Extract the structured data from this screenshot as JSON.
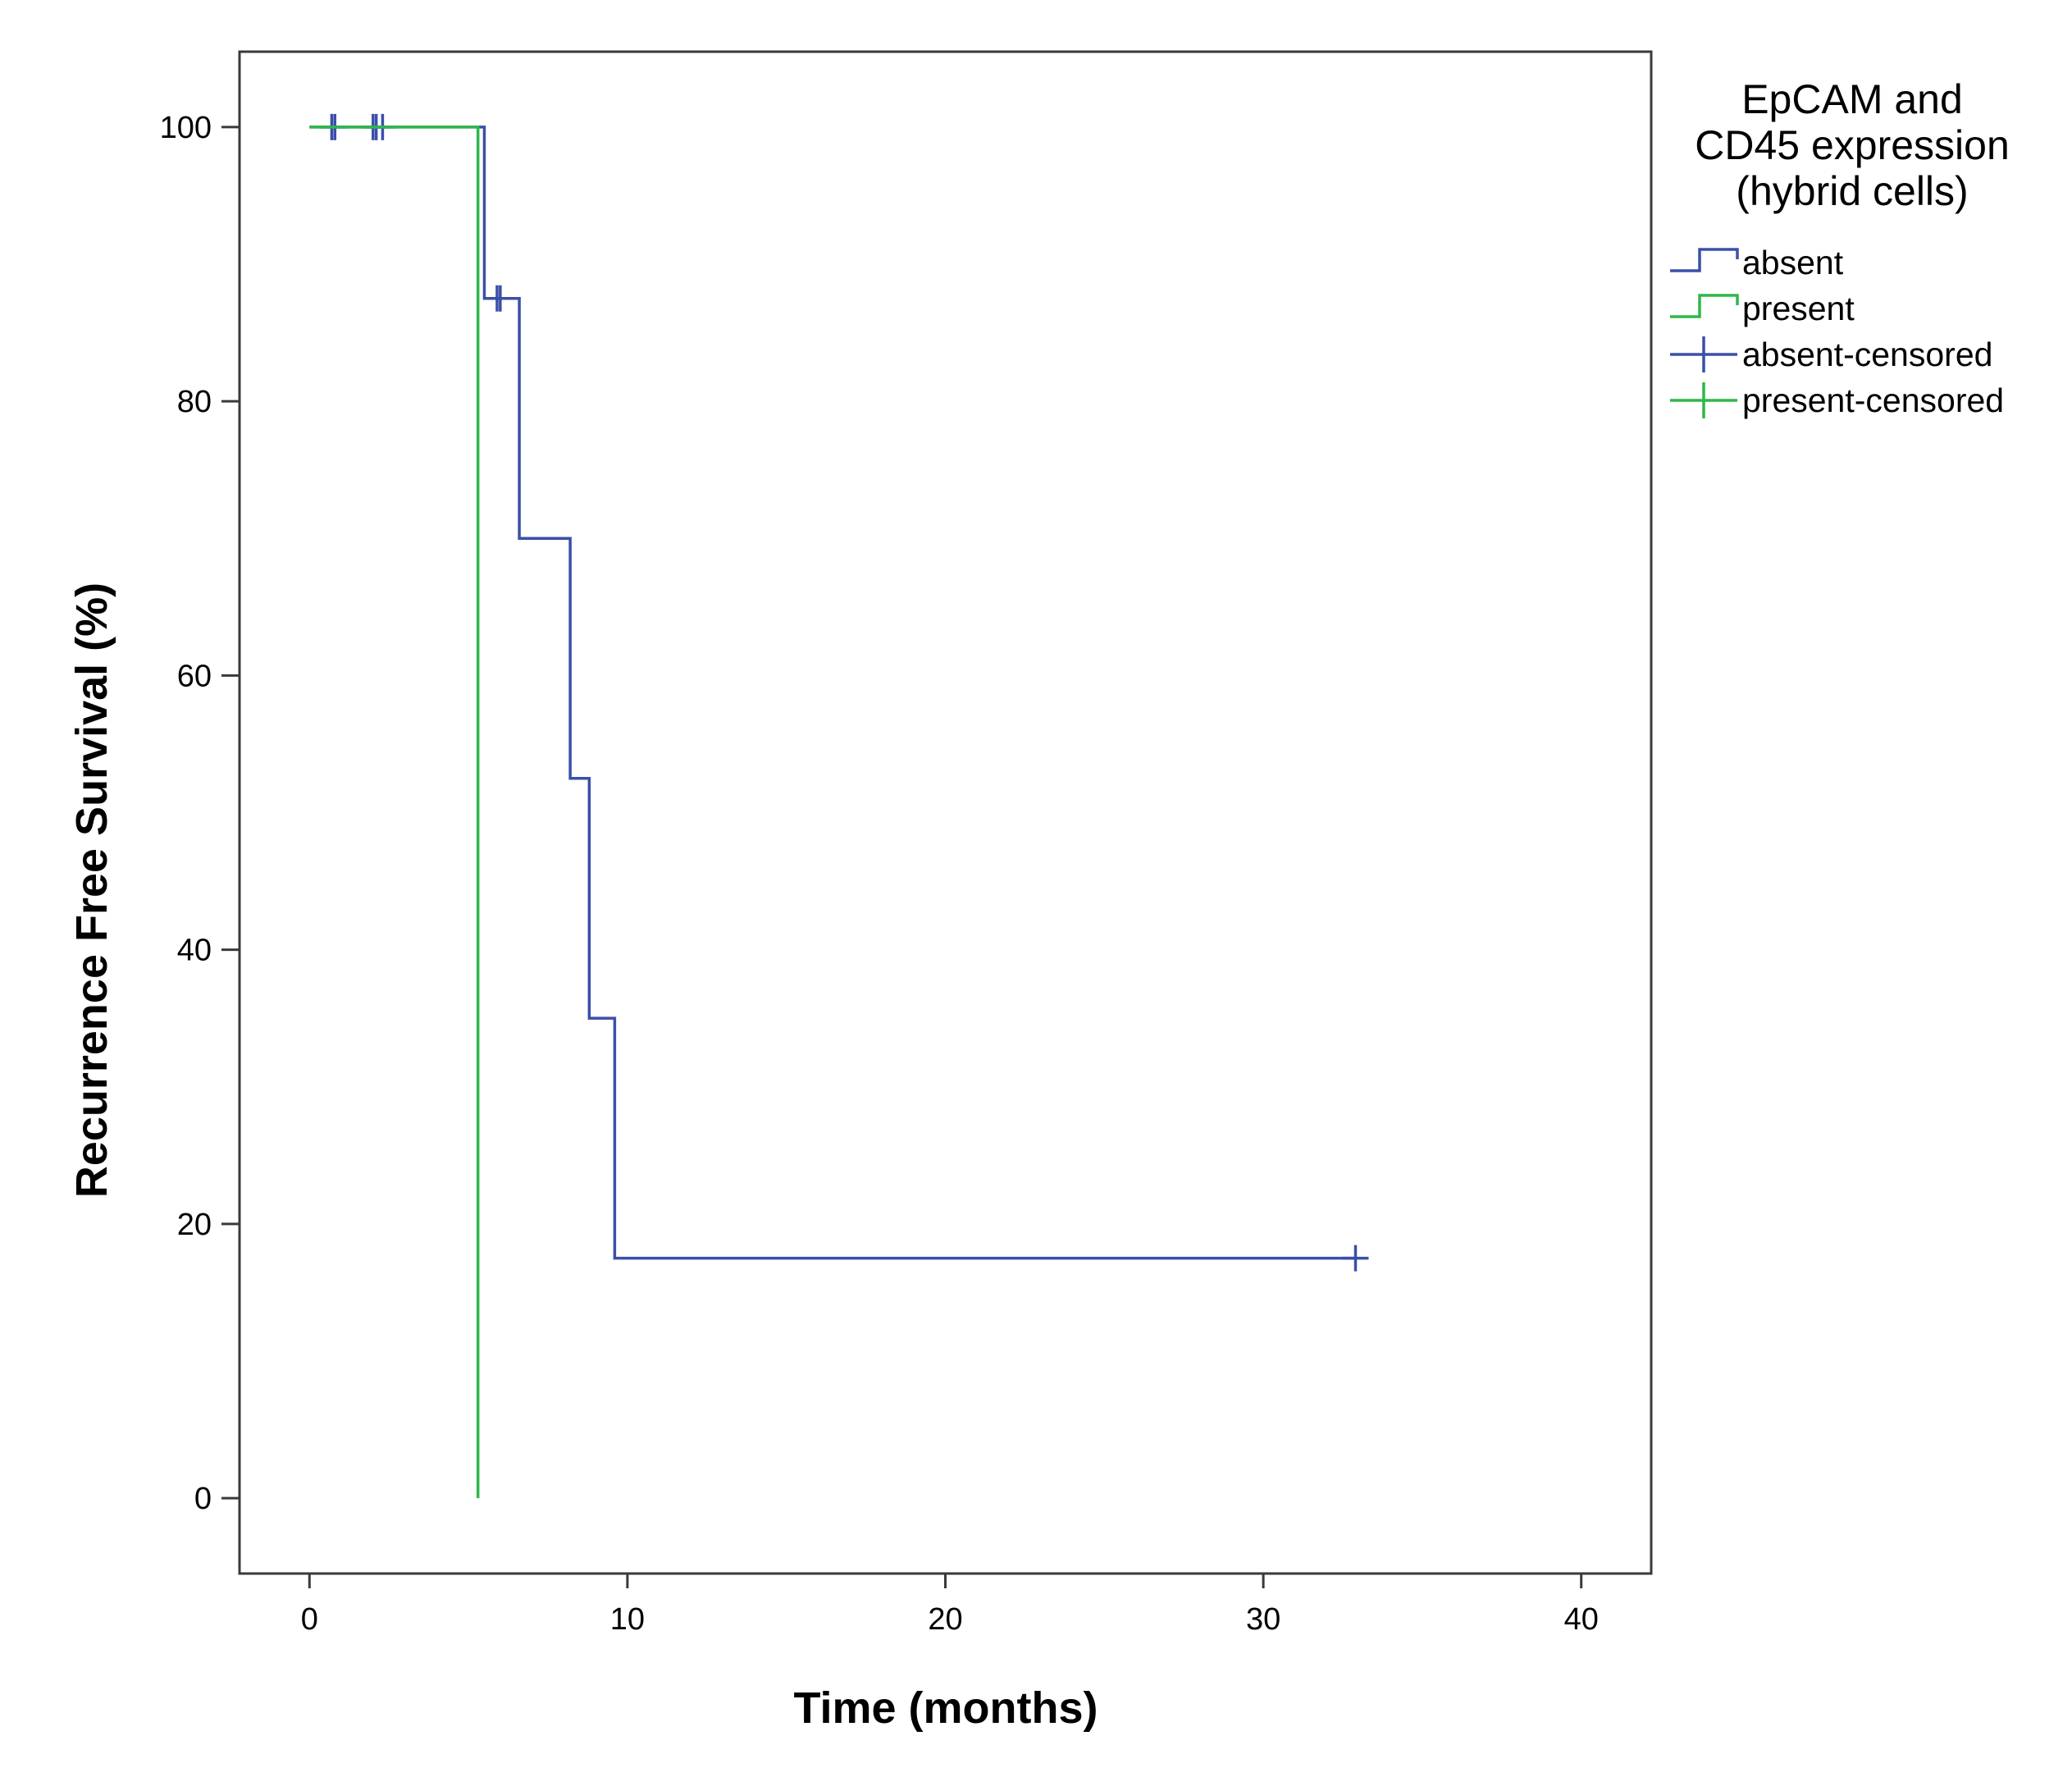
{
  "chart_data": {
    "type": "line",
    "subtype": "kaplan-meier-step",
    "title": "",
    "xlabel": "Time (months)",
    "ylabel": "Recurrence Free Survival (%)",
    "xlim": [
      -2.2,
      42.2
    ],
    "ylim": [
      -5.5,
      105.5
    ],
    "xticks": [
      0,
      10,
      20,
      30,
      40
    ],
    "yticks": [
      0,
      20,
      40,
      60,
      80,
      100
    ],
    "grid": false,
    "legend": {
      "title_lines": [
        "EpCAM and",
        "CD45 expression",
        "(hybrid cells)"
      ],
      "placement": "right",
      "entries": [
        {
          "label": "absent",
          "kind": "line",
          "color": "#3b4fa8"
        },
        {
          "label": "present",
          "kind": "line",
          "color": "#2eb84a"
        },
        {
          "label": "absent-censored",
          "kind": "censor",
          "color": "#3b4fa8"
        },
        {
          "label": "present-censored",
          "kind": "censor",
          "color": "#2eb84a"
        }
      ]
    },
    "series": [
      {
        "name": "absent",
        "color": "#3b4fa8",
        "steps": [
          [
            0,
            100
          ],
          [
            5.5,
            87.5
          ],
          [
            6.6,
            70
          ],
          [
            8.2,
            52.5
          ],
          [
            8.8,
            35
          ],
          [
            9.6,
            17.5
          ],
          [
            32.9,
            17.5
          ]
        ],
        "censored": [
          [
            0.7,
            100
          ],
          [
            0.8,
            100
          ],
          [
            2.0,
            100
          ],
          [
            2.1,
            100
          ],
          [
            2.3,
            100
          ],
          [
            5.9,
            87.5
          ],
          [
            6.0,
            87.5
          ],
          [
            32.9,
            17.5
          ]
        ]
      },
      {
        "name": "present",
        "color": "#2eb84a",
        "steps": [
          [
            0,
            100
          ],
          [
            5.3,
            0
          ]
        ],
        "censored": []
      }
    ]
  }
}
